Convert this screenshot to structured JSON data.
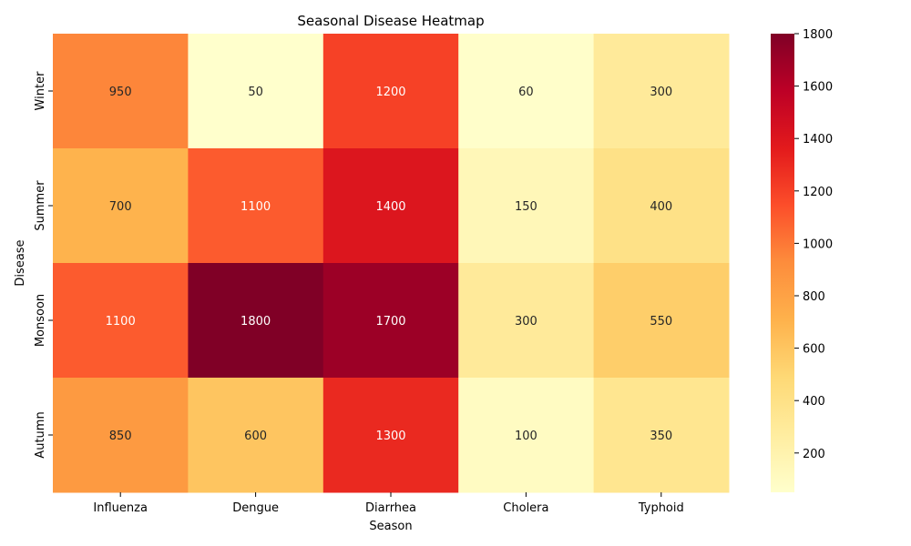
{
  "chart_data": {
    "type": "heatmap",
    "title": "Seasonal Disease Heatmap",
    "xlabel": "Season",
    "ylabel": "Disease",
    "x_categories": [
      "Influenza",
      "Dengue",
      "Diarrhea",
      "Cholera",
      "Typhoid"
    ],
    "y_categories": [
      "Winter",
      "Summer",
      "Monsoon",
      "Autumn"
    ],
    "values": [
      [
        950,
        50,
        1200,
        60,
        300
      ],
      [
        700,
        1100,
        1400,
        150,
        400
      ],
      [
        1100,
        1800,
        1700,
        300,
        550
      ],
      [
        850,
        600,
        1300,
        100,
        350
      ]
    ],
    "colorbar": {
      "range": [
        50,
        1800
      ],
      "ticks": [
        200,
        400,
        600,
        800,
        1000,
        1200,
        1400,
        1600,
        1800
      ],
      "colormap": "YlOrRd"
    }
  }
}
